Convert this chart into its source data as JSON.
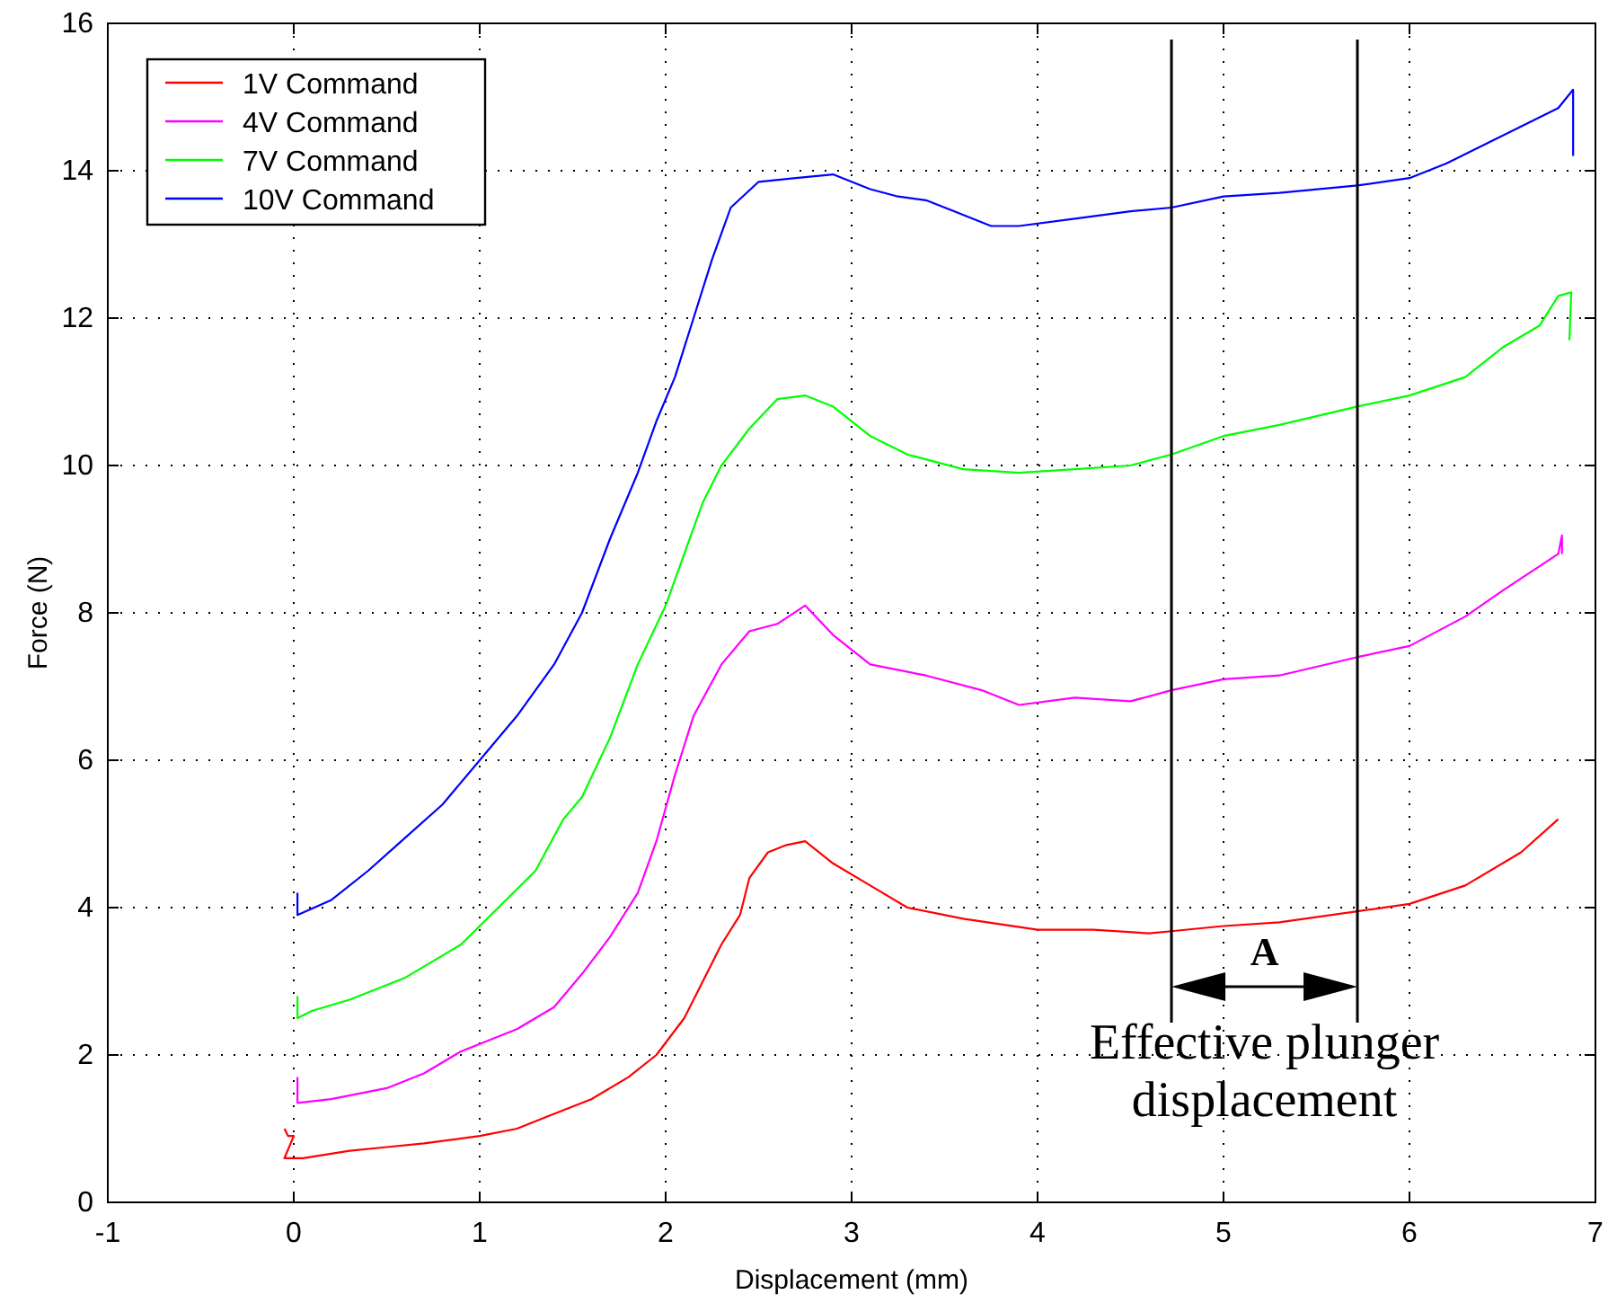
{
  "chart_data": {
    "type": "line",
    "xlabel": "Displacement (mm)",
    "ylabel": "Force (N)",
    "xlim": [
      -1,
      7
    ],
    "ylim": [
      0,
      16
    ],
    "xticks": [
      -1,
      0,
      1,
      2,
      3,
      4,
      5,
      6,
      7
    ],
    "yticks": [
      0,
      2,
      4,
      6,
      8,
      10,
      12,
      14,
      16
    ],
    "grid": true,
    "legend": "top left",
    "line_style": "solid",
    "series": [
      {
        "name": "1V Command",
        "color": "#ff0000",
        "x": [
          -0.05,
          -0.03,
          0.0,
          -0.05,
          0.05,
          0.3,
          0.5,
          0.7,
          1.0,
          1.2,
          1.4,
          1.6,
          1.8,
          1.95,
          2.1,
          2.2,
          2.3,
          2.4,
          2.45,
          2.55,
          2.65,
          2.75,
          2.9,
          3.1,
          3.3,
          3.6,
          4.0,
          4.3,
          4.6,
          4.72,
          5.0,
          5.3,
          5.72,
          6.0,
          6.3,
          6.6,
          6.8
        ],
        "values": [
          1.0,
          0.9,
          0.9,
          0.6,
          0.6,
          0.7,
          0.75,
          0.8,
          0.9,
          1.0,
          1.2,
          1.4,
          1.7,
          2.0,
          2.5,
          3.0,
          3.5,
          3.9,
          4.4,
          4.75,
          4.85,
          4.9,
          4.6,
          4.3,
          4.0,
          3.85,
          3.7,
          3.7,
          3.65,
          3.68,
          3.75,
          3.8,
          3.95,
          4.05,
          4.3,
          4.75,
          5.2
        ]
      },
      {
        "name": "4V Command",
        "color": "#ff00ff",
        "x": [
          0.02,
          0.02,
          0.2,
          0.5,
          0.7,
          0.9,
          1.2,
          1.4,
          1.55,
          1.7,
          1.85,
          1.95,
          2.05,
          2.15,
          2.3,
          2.45,
          2.6,
          2.75,
          2.9,
          3.1,
          3.4,
          3.7,
          3.9,
          4.2,
          4.5,
          4.72,
          5.0,
          5.3,
          5.72,
          6.0,
          6.3,
          6.5,
          6.8,
          6.82,
          6.82
        ],
        "values": [
          1.7,
          1.35,
          1.4,
          1.55,
          1.75,
          2.05,
          2.35,
          2.65,
          3.1,
          3.6,
          4.2,
          4.9,
          5.8,
          6.6,
          7.3,
          7.75,
          7.85,
          8.1,
          7.7,
          7.3,
          7.15,
          6.95,
          6.75,
          6.85,
          6.8,
          6.95,
          7.1,
          7.15,
          7.4,
          7.55,
          7.95,
          8.3,
          8.8,
          9.05,
          8.8
        ]
      },
      {
        "name": "7V Command",
        "color": "#00ff00",
        "x": [
          0.02,
          0.02,
          0.1,
          0.3,
          0.6,
          0.9,
          1.1,
          1.3,
          1.45,
          1.55,
          1.7,
          1.85,
          2.0,
          2.1,
          2.2,
          2.3,
          2.45,
          2.6,
          2.75,
          2.9,
          3.1,
          3.3,
          3.6,
          3.9,
          4.2,
          4.5,
          4.72,
          5.0,
          5.3,
          5.72,
          6.0,
          6.3,
          6.5,
          6.7,
          6.8,
          6.87,
          6.86
        ],
        "values": [
          2.8,
          2.5,
          2.6,
          2.75,
          3.05,
          3.5,
          4.0,
          4.5,
          5.2,
          5.5,
          6.3,
          7.3,
          8.1,
          8.8,
          9.5,
          10.0,
          10.5,
          10.9,
          10.95,
          10.8,
          10.4,
          10.15,
          9.95,
          9.9,
          9.95,
          10.0,
          10.15,
          10.4,
          10.55,
          10.8,
          10.95,
          11.2,
          11.6,
          11.9,
          12.3,
          12.35,
          11.7
        ]
      },
      {
        "name": "10V Command",
        "color": "#0000ff",
        "x": [
          0.02,
          0.02,
          0.2,
          0.4,
          0.6,
          0.8,
          1.0,
          1.2,
          1.4,
          1.55,
          1.7,
          1.85,
          1.95,
          2.05,
          2.15,
          2.25,
          2.35,
          2.5,
          2.7,
          2.9,
          3.1,
          3.25,
          3.4,
          3.55,
          3.75,
          3.9,
          4.2,
          4.5,
          4.72,
          5.0,
          5.3,
          5.72,
          6.0,
          6.2,
          6.4,
          6.6,
          6.8,
          6.88,
          6.88
        ],
        "values": [
          4.2,
          3.9,
          4.1,
          4.5,
          4.95,
          5.4,
          6.0,
          6.6,
          7.3,
          8.0,
          9.0,
          9.9,
          10.6,
          11.2,
          12.0,
          12.8,
          13.5,
          13.85,
          13.9,
          13.95,
          13.75,
          13.65,
          13.6,
          13.45,
          13.25,
          13.25,
          13.35,
          13.45,
          13.5,
          13.65,
          13.7,
          13.8,
          13.9,
          14.1,
          14.35,
          14.6,
          14.85,
          15.1,
          14.2
        ]
      }
    ],
    "ref_lines": [
      {
        "axis": "x",
        "value": 4.72,
        "color": "#000000"
      },
      {
        "axis": "x",
        "value": 5.72,
        "color": "#000000"
      }
    ],
    "annotations": [
      "A",
      "Effective plunger displacement"
    ]
  }
}
